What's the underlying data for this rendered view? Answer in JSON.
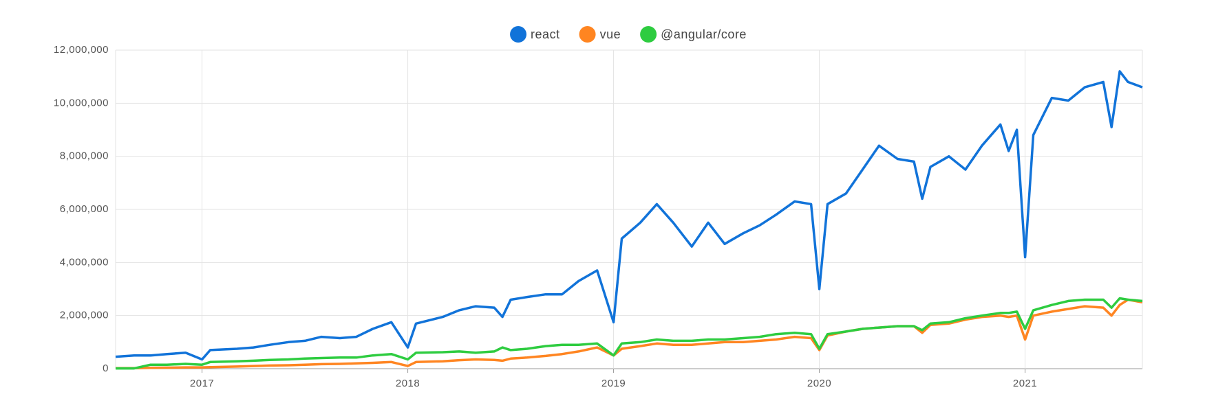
{
  "chart_data": {
    "type": "line",
    "x": [
      2016.58,
      2016.67,
      2016.75,
      2016.83,
      2016.92,
      2017.0,
      2017.04,
      2017.17,
      2017.25,
      2017.33,
      2017.42,
      2017.5,
      2017.58,
      2017.67,
      2017.75,
      2017.83,
      2017.92,
      2018.0,
      2018.04,
      2018.17,
      2018.25,
      2018.33,
      2018.42,
      2018.46,
      2018.5,
      2018.58,
      2018.67,
      2018.75,
      2018.83,
      2018.92,
      2019.0,
      2019.04,
      2019.13,
      2019.21,
      2019.29,
      2019.38,
      2019.46,
      2019.54,
      2019.63,
      2019.71,
      2019.79,
      2019.88,
      2019.96,
      2020.0,
      2020.04,
      2020.13,
      2020.21,
      2020.29,
      2020.38,
      2020.46,
      2020.5,
      2020.54,
      2020.63,
      2020.71,
      2020.79,
      2020.88,
      2020.92,
      2020.96,
      2021.0,
      2021.04,
      2021.13,
      2021.21,
      2021.29,
      2021.38,
      2021.42,
      2021.46,
      2021.5,
      2021.57
    ],
    "series": [
      {
        "name": "react",
        "color": "#1173d9",
        "values": [
          450000,
          500000,
          500000,
          550000,
          600000,
          350000,
          700000,
          750000,
          800000,
          900000,
          1000000,
          1050000,
          1200000,
          1150000,
          1200000,
          1500000,
          1750000,
          800000,
          1700000,
          1950000,
          2200000,
          2350000,
          2300000,
          1950000,
          2600000,
          2700000,
          2800000,
          2800000,
          3300000,
          3700000,
          1750000,
          4900000,
          5500000,
          6200000,
          5500000,
          4600000,
          5500000,
          4700000,
          5100000,
          5400000,
          5800000,
          6300000,
          6200000,
          3000000,
          6200000,
          6600000,
          7500000,
          8400000,
          7900000,
          7800000,
          6400000,
          7600000,
          8000000,
          7500000,
          8400000,
          9200000,
          8200000,
          9000000,
          4200000,
          8800000,
          10200000,
          10100000,
          10600000,
          10800000,
          9100000,
          11200000,
          10800000,
          10600000
        ]
      },
      {
        "name": "vue",
        "color": "#ff8521",
        "values": [
          20000,
          20000,
          30000,
          40000,
          50000,
          50000,
          60000,
          80000,
          100000,
          120000,
          130000,
          150000,
          170000,
          180000,
          200000,
          220000,
          250000,
          100000,
          250000,
          280000,
          320000,
          350000,
          330000,
          300000,
          380000,
          420000,
          480000,
          550000,
          650000,
          800000,
          500000,
          750000,
          850000,
          950000,
          900000,
          900000,
          950000,
          1000000,
          1000000,
          1050000,
          1100000,
          1200000,
          1150000,
          700000,
          1250000,
          1400000,
          1500000,
          1550000,
          1600000,
          1600000,
          1350000,
          1650000,
          1700000,
          1850000,
          1950000,
          2000000,
          1950000,
          2000000,
          1100000,
          2000000,
          2150000,
          2250000,
          2350000,
          2300000,
          2000000,
          2400000,
          2600000,
          2500000
        ]
      },
      {
        "name": "@angular/core",
        "color": "#2ecc40",
        "values": [
          10000,
          10000,
          150000,
          150000,
          180000,
          150000,
          250000,
          280000,
          300000,
          330000,
          350000,
          380000,
          400000,
          420000,
          420000,
          500000,
          550000,
          350000,
          600000,
          620000,
          650000,
          600000,
          650000,
          800000,
          700000,
          750000,
          850000,
          900000,
          900000,
          950000,
          500000,
          950000,
          1000000,
          1100000,
          1050000,
          1050000,
          1100000,
          1100000,
          1150000,
          1200000,
          1300000,
          1350000,
          1300000,
          750000,
          1300000,
          1400000,
          1500000,
          1550000,
          1600000,
          1600000,
          1450000,
          1700000,
          1750000,
          1900000,
          2000000,
          2100000,
          2100000,
          2150000,
          1500000,
          2200000,
          2400000,
          2550000,
          2600000,
          2600000,
          2300000,
          2650000,
          2600000,
          2550000
        ]
      }
    ],
    "xlim": [
      2016.58,
      2021.57
    ],
    "xticks": [
      2017,
      2018,
      2019,
      2020,
      2021
    ],
    "ylim": [
      0,
      12000000
    ],
    "yticks": [
      0,
      {
        "value": 2000000,
        "label": "2,000,000"
      },
      {
        "value": 4000000,
        "label": "4,000,000"
      },
      {
        "value": 6000000,
        "label": "6,000,000"
      },
      {
        "value": 8000000,
        "label": "8,000,000"
      },
      {
        "value": 10000000,
        "label": "10,000,000"
      },
      {
        "value": 12000000,
        "label": "12,000,000"
      }
    ],
    "grid": true,
    "legend": "top"
  }
}
